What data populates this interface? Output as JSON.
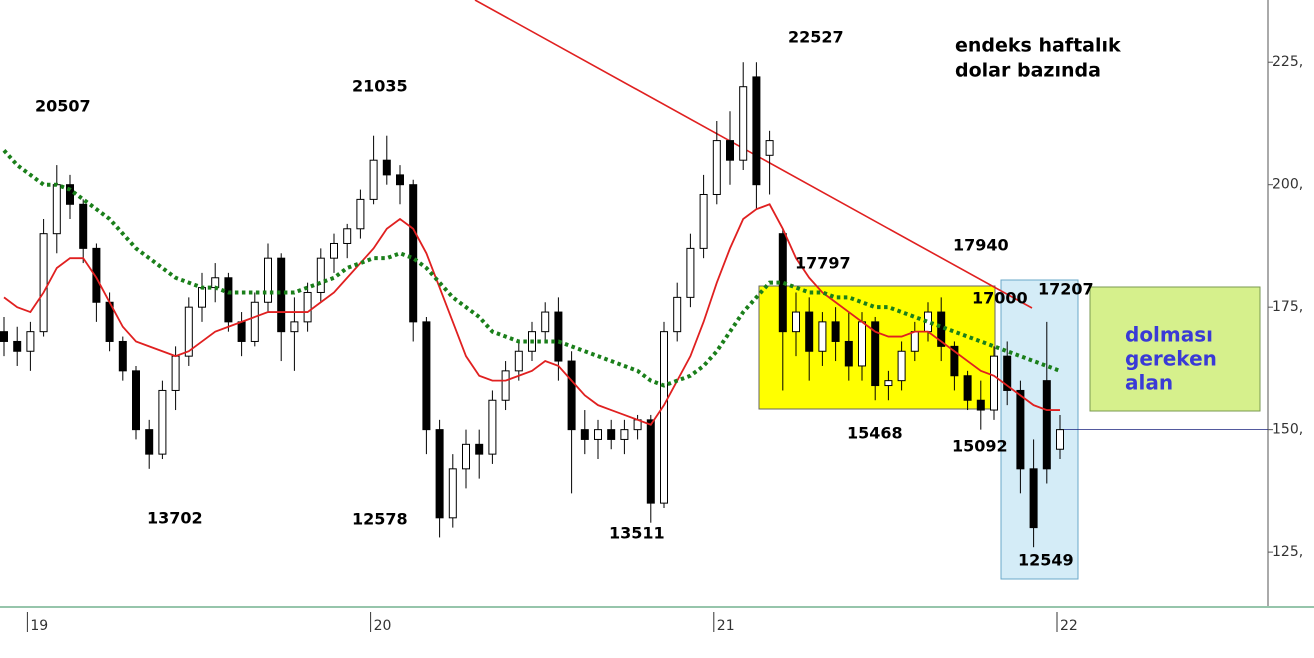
{
  "chart_data": {
    "type": "candlestick",
    "title": [
      "endeks haftalık",
      "dolar bazında"
    ],
    "box_text": [
      "dolması",
      "gereken",
      "alan"
    ],
    "annotations": [
      "20507",
      "21035",
      "22527",
      "13702",
      "12578",
      "13511",
      "17797",
      "17940",
      "17000",
      "17207",
      "15468",
      "15092",
      "12549"
    ],
    "categories": [
      null,
      null,
      "19",
      null,
      null,
      null,
      null,
      null,
      null,
      null,
      null,
      null,
      null,
      null,
      null,
      null,
      null,
      null,
      null,
      null,
      null,
      null,
      null,
      null,
      null,
      null,
      null,
      null,
      "20",
      null,
      null,
      null,
      null,
      null,
      null,
      null,
      null,
      null,
      null,
      null,
      null,
      null,
      null,
      null,
      null,
      null,
      null,
      null,
      null,
      null,
      null,
      null,
      null,
      null,
      "21",
      null,
      null,
      null,
      null,
      null,
      null,
      null,
      null,
      null,
      null,
      null,
      null,
      null,
      null,
      null,
      null,
      null,
      null,
      null,
      null,
      null,
      null,
      null,
      null,
      null,
      "22"
    ],
    "ohlc": [
      [
        170,
        173,
        165,
        168
      ],
      [
        168,
        171,
        163,
        166
      ],
      [
        166,
        172,
        162,
        170
      ],
      [
        170,
        193,
        169,
        190
      ],
      [
        190,
        204,
        186,
        200
      ],
      [
        200,
        202,
        193,
        196
      ],
      [
        196,
        197,
        184,
        187
      ],
      [
        187,
        188,
        172,
        176
      ],
      [
        176,
        178,
        166,
        168
      ],
      [
        168,
        169,
        160,
        162
      ],
      [
        162,
        163,
        148,
        150
      ],
      [
        150,
        152,
        142,
        145
      ],
      [
        145,
        160,
        144,
        158
      ],
      [
        158,
        167,
        154,
        165
      ],
      [
        165,
        177,
        163,
        175
      ],
      [
        175,
        182,
        172,
        179
      ],
      [
        179,
        184,
        176,
        181
      ],
      [
        181,
        182,
        170,
        172
      ],
      [
        172,
        174,
        165,
        168
      ],
      [
        168,
        178,
        167,
        176
      ],
      [
        176,
        188,
        174,
        185
      ],
      [
        185,
        186,
        164,
        170
      ],
      [
        170,
        177,
        162,
        172
      ],
      [
        172,
        180,
        170,
        178
      ],
      [
        178,
        187,
        176,
        185
      ],
      [
        185,
        190,
        182,
        188
      ],
      [
        188,
        192,
        185,
        191
      ],
      [
        191,
        199,
        189,
        197
      ],
      [
        197,
        210,
        196,
        205
      ],
      [
        205,
        210,
        200,
        202
      ],
      [
        202,
        204,
        196,
        200
      ],
      [
        200,
        201,
        168,
        172
      ],
      [
        172,
        173,
        145,
        150
      ],
      [
        150,
        152,
        128,
        132
      ],
      [
        132,
        145,
        130,
        142
      ],
      [
        142,
        150,
        138,
        147
      ],
      [
        147,
        150,
        140,
        145
      ],
      [
        145,
        158,
        143,
        156
      ],
      [
        156,
        164,
        154,
        162
      ],
      [
        162,
        168,
        160,
        166
      ],
      [
        166,
        172,
        164,
        170
      ],
      [
        170,
        176,
        168,
        174
      ],
      [
        174,
        177,
        160,
        164
      ],
      [
        164,
        166,
        137,
        150
      ],
      [
        150,
        154,
        145,
        148
      ],
      [
        148,
        152,
        144,
        150
      ],
      [
        150,
        152,
        146,
        148
      ],
      [
        148,
        152,
        145,
        150
      ],
      [
        150,
        153,
        148,
        152
      ],
      [
        152,
        153,
        131,
        135
      ],
      [
        135,
        172,
        134,
        170
      ],
      [
        170,
        180,
        168,
        177
      ],
      [
        177,
        190,
        175,
        187
      ],
      [
        187,
        202,
        185,
        198
      ],
      [
        198,
        213,
        196,
        209
      ],
      [
        209,
        215,
        200,
        205
      ],
      [
        205,
        225,
        203,
        220
      ],
      [
        222,
        225,
        195,
        200
      ],
      [
        206,
        211,
        198,
        209
      ],
      [
        190,
        191,
        158,
        170
      ],
      [
        170,
        178,
        165,
        174
      ],
      [
        174,
        177,
        160,
        166
      ],
      [
        166,
        174,
        163,
        172
      ],
      [
        172,
        175,
        164,
        168
      ],
      [
        168,
        174,
        160,
        163
      ],
      [
        163,
        174,
        160,
        172
      ],
      [
        172,
        173,
        156,
        159
      ],
      [
        159,
        162,
        156,
        160
      ],
      [
        160,
        168,
        158,
        166
      ],
      [
        166,
        172,
        164,
        170
      ],
      [
        170,
        176,
        168,
        174
      ],
      [
        174,
        177,
        164,
        167
      ],
      [
        167,
        168,
        158,
        161
      ],
      [
        161,
        162,
        154,
        156
      ],
      [
        156,
        160,
        150,
        154
      ],
      [
        154,
        167,
        152,
        165
      ],
      [
        165,
        168,
        155,
        158
      ],
      [
        158,
        160,
        137,
        142
      ],
      [
        142,
        148,
        126,
        130
      ],
      [
        160,
        172,
        139,
        142
      ],
      [
        146,
        153,
        144,
        150
      ]
    ],
    "series": [
      {
        "color": "#e02020",
        "style": "solid",
        "values": [
          177,
          175,
          174,
          178,
          183,
          185,
          185,
          181,
          176,
          171,
          168,
          167,
          166,
          165,
          166,
          168,
          170,
          171,
          172,
          173,
          174,
          174,
          174,
          174,
          176,
          178,
          181,
          184,
          187,
          191,
          193,
          191,
          186,
          179,
          172,
          165,
          161,
          160,
          160,
          161,
          162,
          164,
          163,
          160,
          157,
          155,
          154,
          153,
          152,
          151,
          155,
          160,
          165,
          172,
          180,
          187,
          193,
          195,
          196,
          191,
          185,
          181,
          178,
          176,
          174,
          172,
          170,
          169,
          169,
          170,
          170,
          168,
          166,
          164,
          162,
          161,
          159,
          157,
          155,
          154,
          154
        ]
      },
      {
        "color": "#1a7f1a",
        "style": "dotted",
        "values": [
          207,
          204,
          202,
          200,
          200,
          199,
          197,
          195,
          193,
          190,
          187,
          185,
          183,
          181,
          180,
          179,
          179,
          178,
          178,
          178,
          178,
          178,
          178,
          179,
          180,
          181,
          183,
          184,
          185,
          185,
          186,
          185,
          183,
          180,
          177,
          175,
          173,
          170,
          169,
          168,
          168,
          168,
          168,
          167,
          166,
          165,
          164,
          163,
          162,
          160,
          159,
          160,
          161,
          163,
          166,
          170,
          174,
          177,
          180,
          180,
          179,
          178,
          178,
          177,
          177,
          176,
          175,
          175,
          174,
          173,
          172,
          171,
          170,
          169,
          168,
          167,
          166,
          165,
          164,
          163,
          162
        ]
      }
    ],
    "ylim": [
      114,
      237.7
    ],
    "yticks": [
      {
        "value": 125,
        "label": "125,"
      },
      {
        "value": 150,
        "label": "150,"
      },
      {
        "value": 175,
        "label": "175,"
      },
      {
        "value": 200,
        "label": "200,"
      },
      {
        "value": 225,
        "label": "225,"
      }
    ],
    "up_color": "#ffffff",
    "down_color": "#000000"
  }
}
